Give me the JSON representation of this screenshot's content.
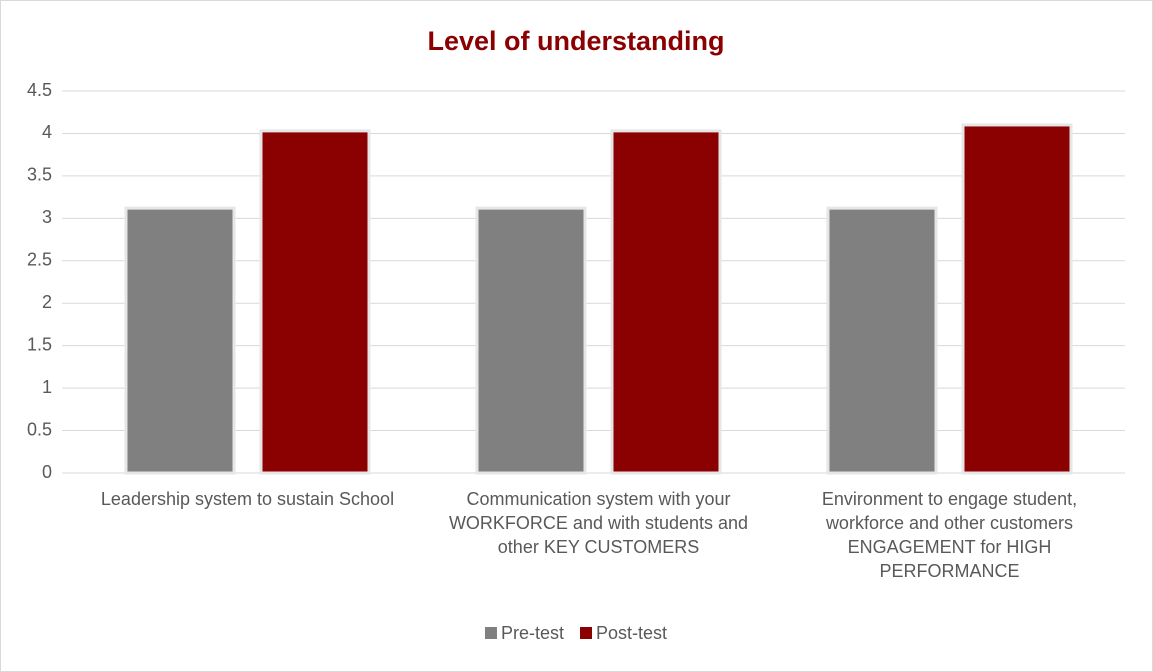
{
  "chart_data": {
    "type": "bar",
    "title": "Level of understanding",
    "categories": [
      "Leadership system to sustain School",
      "Communication system with your WORKFORCE and with students and other KEY CUSTOMERS",
      "Environment to engage student, workforce and other customers ENGAGEMENT for HIGH PERFORMANCE"
    ],
    "series": [
      {
        "name": "Pre-test",
        "color": "#808080",
        "values": [
          3.12,
          3.12,
          3.12
        ]
      },
      {
        "name": "Post-test",
        "color": "#8b0000",
        "values": [
          4.03,
          4.03,
          4.1
        ]
      }
    ],
    "ylim": [
      0,
      4.5
    ],
    "yticks": [
      0,
      0.5,
      1,
      1.5,
      2,
      2.5,
      3,
      3.5,
      4,
      4.5
    ],
    "grid": true,
    "legend": "bottom"
  }
}
